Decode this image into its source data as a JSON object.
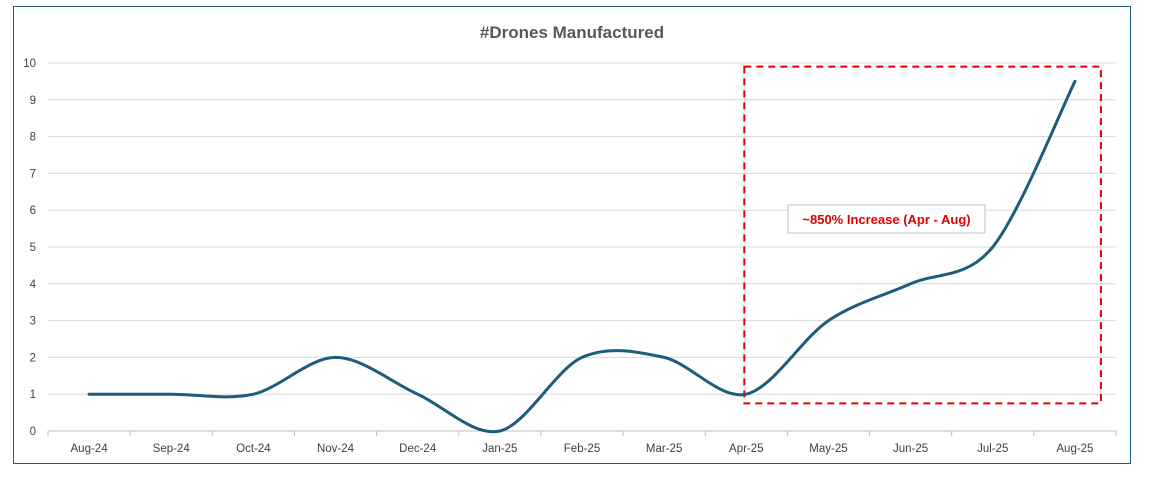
{
  "chart_data": {
    "type": "line",
    "title": "#Drones Manufactured",
    "xlabel": "",
    "ylabel": "",
    "categories": [
      "Aug-24",
      "Sep-24",
      "Oct-24",
      "Nov-24",
      "Dec-24",
      "Jan-25",
      "Feb-25",
      "Mar-25",
      "Apr-25",
      "May-25",
      "Jun-25",
      "Jul-25",
      "Aug-25"
    ],
    "values": [
      1,
      1,
      1,
      2,
      1,
      0,
      2,
      2,
      1,
      3,
      4,
      5,
      9.5
    ],
    "ylim": [
      0,
      10
    ],
    "yticks": [
      0,
      1,
      2,
      3,
      4,
      5,
      6,
      7,
      8,
      9,
      10
    ],
    "grid": true,
    "smooth": true,
    "line_color": "#1c5d7b",
    "annotation": {
      "text": "~850% Increase (Apr - Aug)",
      "color": "#e00000",
      "box_style": "dashed",
      "box_from_category": "Apr-25",
      "box_to_category": "Aug-25",
      "box_y_range": [
        0.75,
        9.9
      ]
    }
  }
}
